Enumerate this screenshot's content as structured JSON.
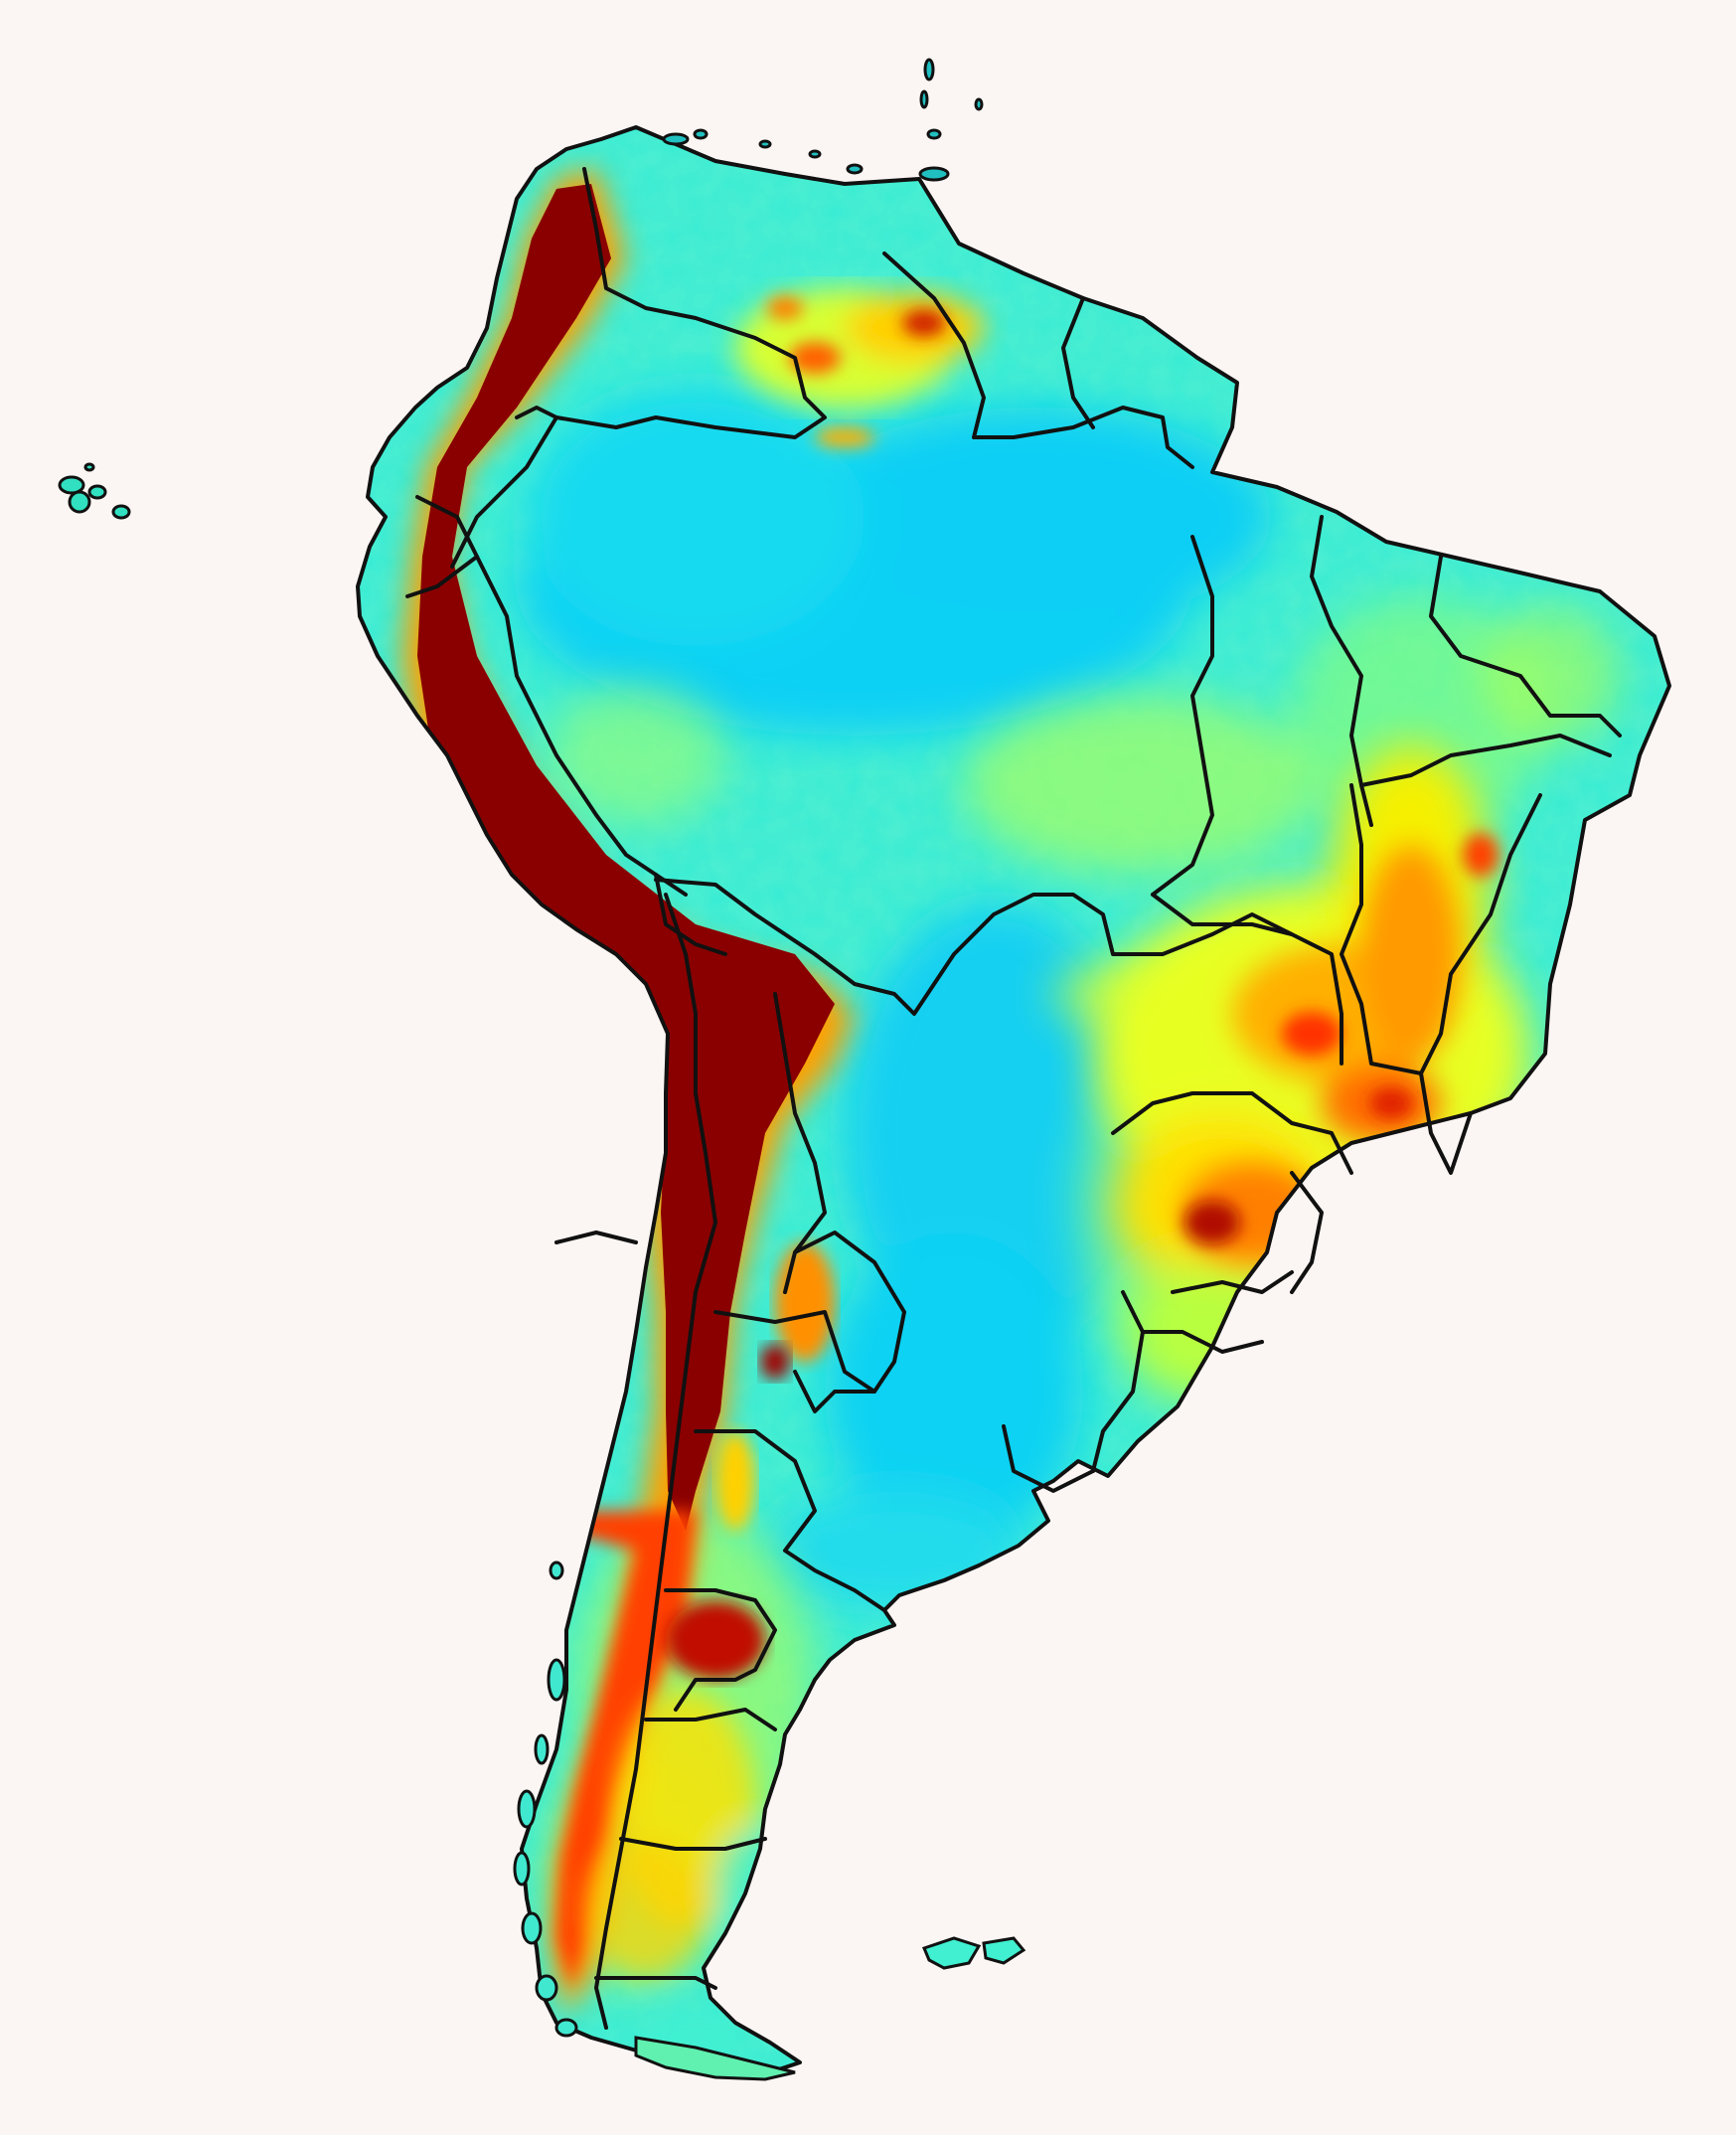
{
  "map": {
    "subject": "South America",
    "kind": "elevation relief",
    "colormap": [
      "#00c8ff",
      "#20f0d8",
      "#80ff80",
      "#ffff00",
      "#ffa000",
      "#ff2a00",
      "#7a0000"
    ],
    "background_color": "#fbf6f3",
    "border_color": "#111111",
    "features": [
      "andes-highlands",
      "guiana-highlands",
      "brazilian-highlands",
      "amazon-basin",
      "pampas-lowland",
      "patagonia",
      "falkland-islands",
      "galapagos-islands"
    ]
  }
}
